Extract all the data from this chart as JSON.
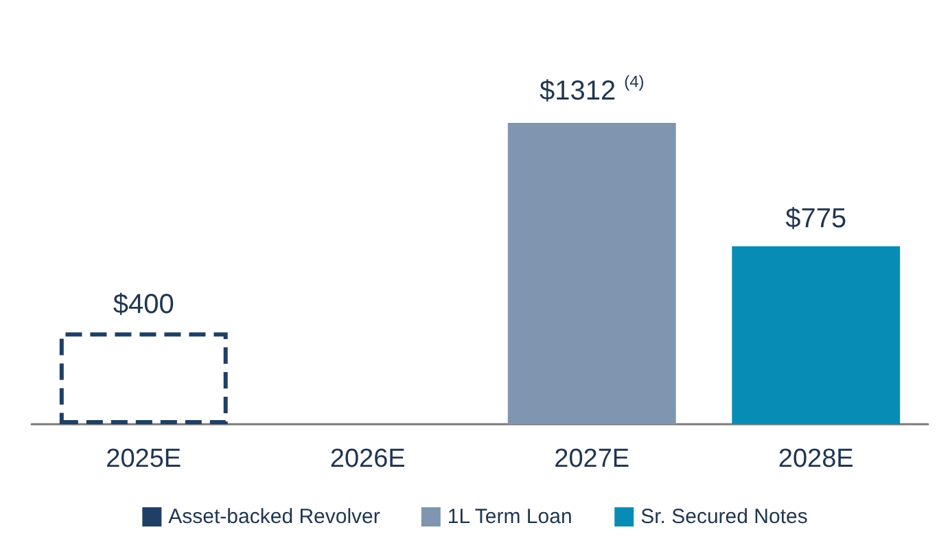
{
  "chart_data": {
    "type": "bar",
    "categories": [
      "2025E",
      "2026E",
      "2027E",
      "2028E"
    ],
    "stacked": true,
    "grid": false,
    "legend": "bottom",
    "series": [
      {
        "name": "Asset-backed Revolver",
        "color": "#1f3f66",
        "values": [
          400,
          null,
          null,
          null
        ],
        "value_labels": [
          "$400",
          null,
          null,
          null
        ],
        "line_style": "dashed"
      },
      {
        "name": "1L Term Loan",
        "color": "#7f95b0",
        "values": [
          null,
          null,
          1312,
          null
        ],
        "value_labels": [
          null,
          null,
          "$1312",
          null
        ]
      },
      {
        "name": "Sr. Secured Notes",
        "color": "#078db5",
        "values": [
          null,
          null,
          null,
          775
        ],
        "value_labels": [
          null,
          null,
          null,
          "$775"
        ]
      }
    ],
    "annotations": [
      {
        "text": "(4)",
        "x": "2027E",
        "y": 1312
      }
    ]
  }
}
